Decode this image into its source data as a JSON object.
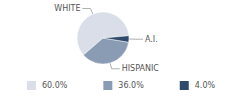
{
  "chart_data": {
    "type": "pie",
    "categories": [
      "WHITE",
      "HISPANIC",
      "A.I."
    ],
    "values": [
      60,
      36,
      4
    ],
    "value_labels": [
      "60.0%",
      "36.0%",
      "4.0%"
    ],
    "colors": [
      "#d9dee8",
      "#8a9bb4",
      "#2f4a6b"
    ],
    "legend": "bottom"
  }
}
